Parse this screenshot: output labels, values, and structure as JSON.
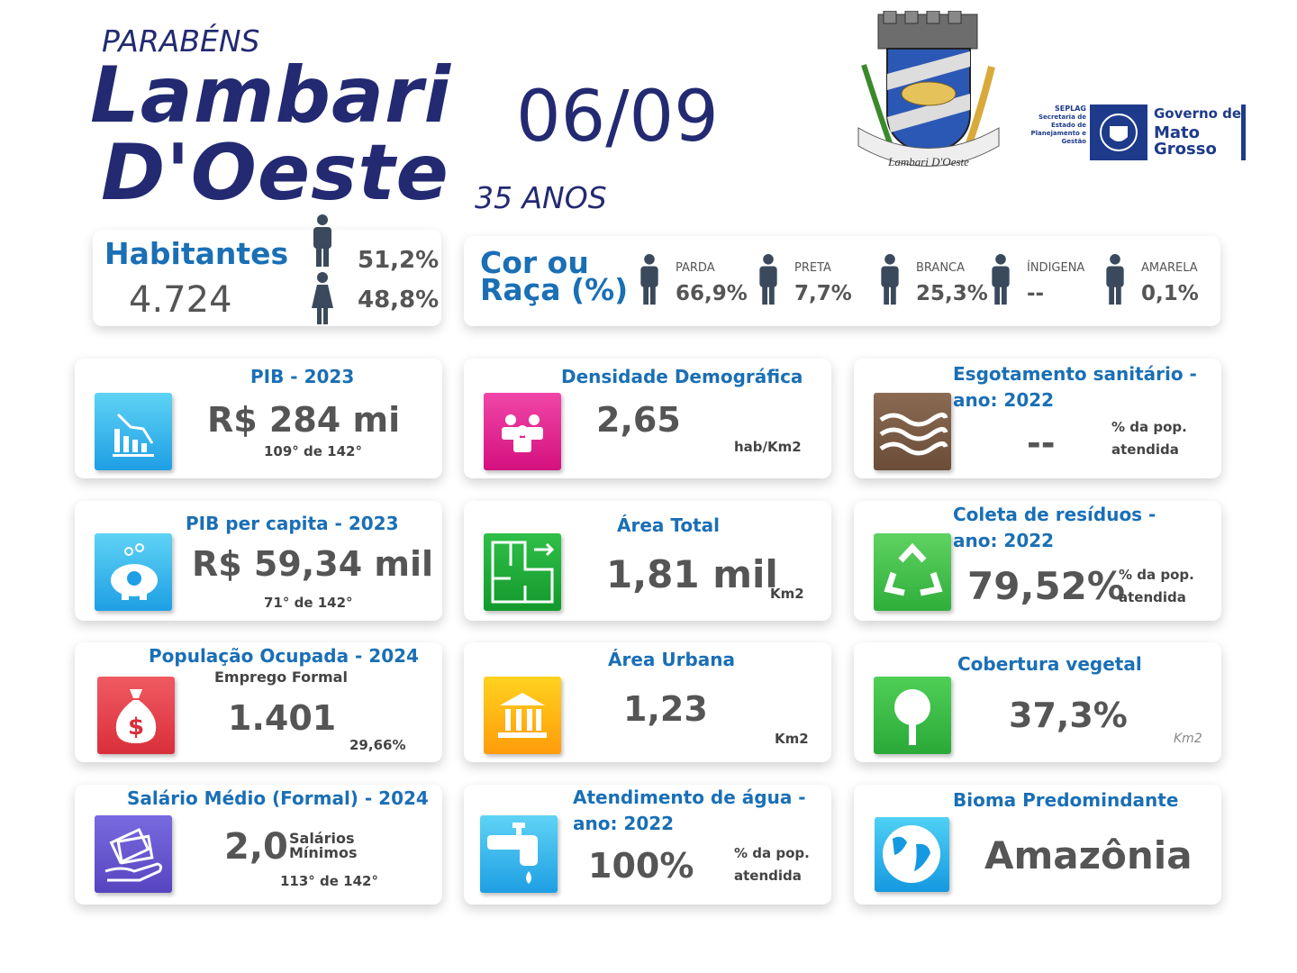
{
  "header": {
    "greeting": "PARABÉNS",
    "city_line1": "Lambari",
    "city_line2": "D'Oeste",
    "date": "06/09",
    "anniversary": "35 ANOS"
  },
  "seal": {
    "banner": "Lambari D'Oeste"
  },
  "government_logo": {
    "agency": "SEPLAG",
    "agency_name": "Secretaria de Estado de Planejamento e Gestão",
    "title_line1": "Governo de",
    "title_line2": "Mato",
    "title_line3": "Grosso"
  },
  "population": {
    "label": "Habitantes",
    "total": "4.724",
    "male_pct": "51,2%",
    "female_pct": "48,8%"
  },
  "race": {
    "label": "Cor ou Raça (%)",
    "groups": [
      {
        "name": "PARDA",
        "value": "66,9%"
      },
      {
        "name": "PRETA",
        "value": "7,7%"
      },
      {
        "name": "BRANCA",
        "value": "25,3%"
      },
      {
        "name": "ÍNDIGENA",
        "value": "--"
      },
      {
        "name": "AMARELA",
        "value": "0,1%"
      }
    ]
  },
  "cards": [
    {
      "title": "PIB - 2023",
      "value": "R$ 284 mi",
      "rank": "109° de 142°"
    },
    {
      "title": "Densidade Demográfica",
      "value": "2,65",
      "unit": "hab/Km2"
    },
    {
      "title": "Esgotamento sanitário - ano: 2022",
      "value": "--",
      "unit": "% da pop. atendida"
    },
    {
      "title": "PIB per capita - 2023",
      "value": "R$ 59,34 mil",
      "rank": "71° de 142°"
    },
    {
      "title": "Área Total",
      "value": "1,81 mil",
      "unit": "Km2"
    },
    {
      "title": "Coleta de resíduos - ano: 2022",
      "value": "79,52%",
      "unit": "% da pop. atendida"
    },
    {
      "title": "População Ocupada - 2024",
      "subtitle": "Emprego Formal",
      "value": "1.401",
      "note": "29,66%"
    },
    {
      "title": "Área Urbana",
      "value": "1,23",
      "unit": "Km2"
    },
    {
      "title": "Cobertura vegetal",
      "value": "37,3%",
      "unit": "Km2"
    },
    {
      "title": "Salário Médio (Formal) - 2024",
      "value": "2,0",
      "unit": "Salários Mínimos",
      "rank": "113° de 142°"
    },
    {
      "title": "Atendimento de água - ano: 2022",
      "value": "100%",
      "unit": "% da pop. atendida"
    },
    {
      "title": "Bioma Predomindante",
      "value": "Amazônia"
    }
  ]
}
